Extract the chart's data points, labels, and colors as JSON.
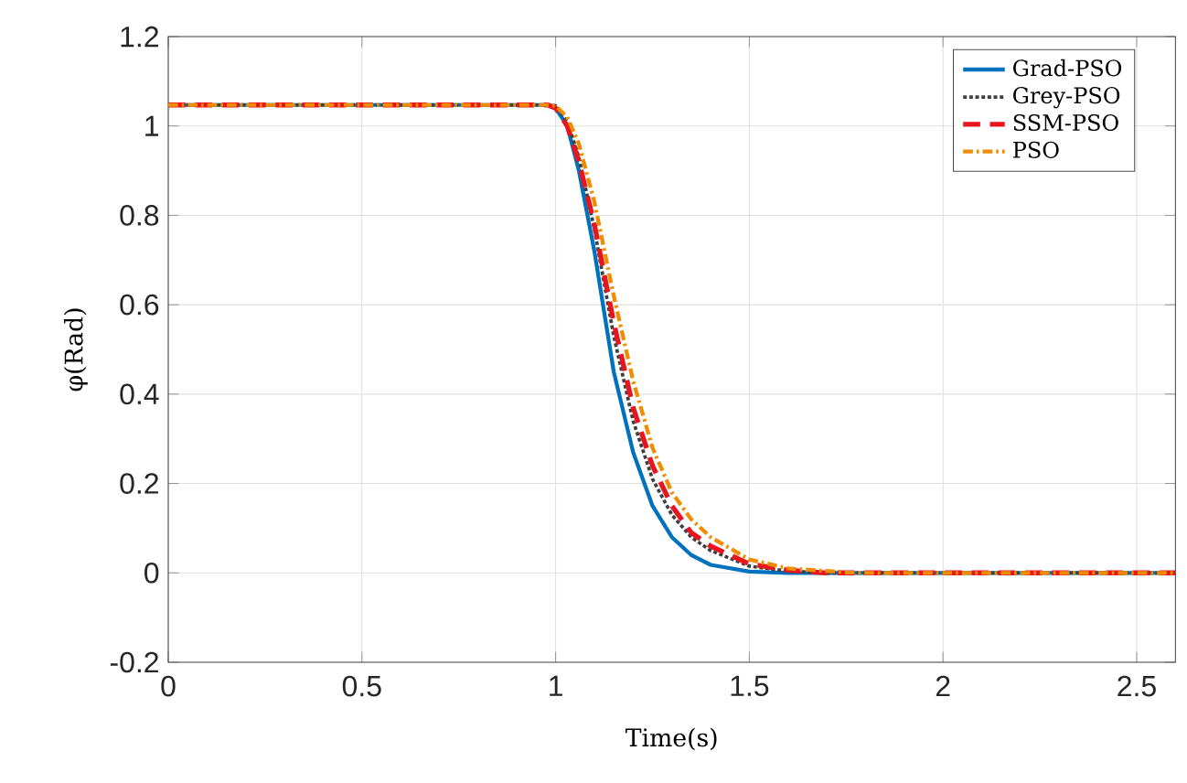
{
  "chart_data": {
    "type": "line",
    "xlabel": "Time(s)",
    "ylabel": "φ(Rad)",
    "xlim": [
      0,
      2.6
    ],
    "ylim": [
      -0.2,
      1.2
    ],
    "xticks": [
      0,
      0.5,
      1,
      1.5,
      2,
      2.5
    ],
    "yticks": [
      -0.2,
      0,
      0.2,
      0.4,
      0.6,
      0.8,
      1,
      1.2
    ],
    "grid": true,
    "legend": "top right",
    "series": [
      {
        "name": "Grad-PSO",
        "color": "#0072bd",
        "line_style": "solid",
        "x": [
          0,
          0.98,
          1.0,
          1.03,
          1.06,
          1.1,
          1.15,
          1.2,
          1.25,
          1.3,
          1.35,
          1.4,
          1.5,
          1.6,
          2.6
        ],
        "values": [
          1.047,
          1.047,
          1.04,
          1.0,
          0.9,
          0.72,
          0.45,
          0.27,
          0.15,
          0.08,
          0.04,
          0.018,
          0.003,
          0,
          0
        ]
      },
      {
        "name": "Grey-PSO",
        "color": "#404040",
        "line_style": "dotted",
        "x": [
          0,
          0.98,
          1.0,
          1.03,
          1.06,
          1.1,
          1.15,
          1.2,
          1.25,
          1.3,
          1.35,
          1.4,
          1.5,
          1.6,
          1.7,
          2.6
        ],
        "values": [
          1.047,
          1.047,
          1.045,
          1.01,
          0.93,
          0.77,
          0.53,
          0.34,
          0.21,
          0.13,
          0.08,
          0.05,
          0.015,
          0.004,
          0,
          0
        ]
      },
      {
        "name": "SSM-PSO",
        "color": "#e8141e",
        "line_style": "dashed",
        "x": [
          0,
          0.98,
          1.0,
          1.03,
          1.06,
          1.1,
          1.15,
          1.2,
          1.25,
          1.3,
          1.35,
          1.4,
          1.5,
          1.6,
          1.7,
          2.6
        ],
        "values": [
          1.047,
          1.047,
          1.04,
          1.0,
          0.92,
          0.78,
          0.56,
          0.37,
          0.24,
          0.15,
          0.09,
          0.06,
          0.02,
          0.006,
          0,
          0
        ]
      },
      {
        "name": "PSO",
        "color": "#f08c00",
        "line_style": "dashdot",
        "x": [
          0,
          0.98,
          1.0,
          1.03,
          1.06,
          1.1,
          1.15,
          1.2,
          1.25,
          1.3,
          1.35,
          1.4,
          1.5,
          1.6,
          1.75,
          1.8,
          2.6
        ],
        "values": [
          1.047,
          1.047,
          1.045,
          1.02,
          0.96,
          0.83,
          0.62,
          0.43,
          0.28,
          0.18,
          0.12,
          0.08,
          0.03,
          0.01,
          0.001,
          0,
          0
        ]
      }
    ]
  }
}
